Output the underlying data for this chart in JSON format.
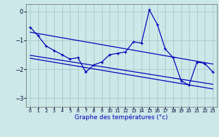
{
  "xlabel": "Graphe des températures (°c)",
  "bg_color": "#cce8e8",
  "grid_color": "#aacccc",
  "line_color": "#0000bb",
  "xlim": [
    -0.5,
    23.5
  ],
  "ylim": [
    -3.3,
    0.25
  ],
  "yticks": [
    0,
    -1,
    -2,
    -3
  ],
  "xticks": [
    0,
    1,
    2,
    3,
    4,
    5,
    6,
    7,
    8,
    9,
    10,
    11,
    12,
    13,
    14,
    15,
    16,
    17,
    18,
    19,
    20,
    21,
    22,
    23
  ],
  "main_x": [
    0,
    1,
    2,
    3,
    4,
    5,
    6,
    7,
    8,
    9,
    10,
    11,
    12,
    13,
    14,
    15,
    16,
    17,
    18,
    19,
    20,
    21,
    22,
    23
  ],
  "main_y": [
    -0.55,
    -0.85,
    -1.2,
    -1.35,
    -1.5,
    -1.65,
    -1.6,
    -2.1,
    -1.85,
    -1.75,
    -1.5,
    -1.45,
    -1.4,
    -1.05,
    -1.1,
    0.05,
    -0.45,
    -1.3,
    -1.6,
    -2.4,
    -2.55,
    -1.75,
    -1.8,
    -2.1
  ],
  "trend1_x": [
    0,
    23
  ],
  "trend1_y": [
    -0.72,
    -1.82
  ],
  "trend2_x": [
    0,
    23
  ],
  "trend2_y": [
    -1.52,
    -2.52
  ],
  "trend3_x": [
    0,
    23
  ],
  "trend3_y": [
    -1.62,
    -2.68
  ]
}
